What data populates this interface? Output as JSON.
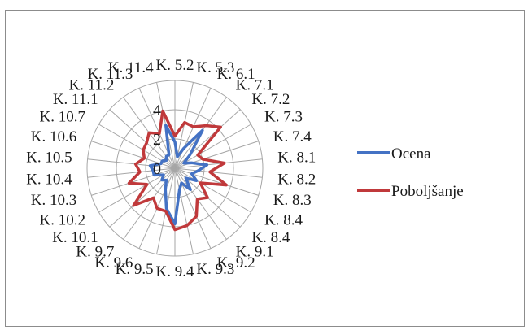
{
  "chart_data": {
    "type": "radar",
    "categories": [
      "K. 5.2",
      "K. 5.3",
      "K. 6.1",
      "K. 7.1",
      "K. 7.2",
      "K. 7.3",
      "K. 7.4",
      "K. 8.1",
      "K. 8.2",
      "K. 8.3",
      "K. 8.4",
      "K. 8.4",
      "K. 9.1",
      "K. 9.2",
      "K. 9.3",
      "K. 9.4",
      "K. 9.5",
      "K. 9.6",
      "K. 9.7",
      "K. 10.1",
      "K. 10.2",
      "K. 10.3",
      "K. 10.4",
      "K. 10.5",
      "K. 10.6",
      "K. 10.7",
      "K. 11.1",
      "K. 11.2",
      "K. 11.3",
      "K. 11.4"
    ],
    "rlim": [
      0,
      6
    ],
    "ticks": [
      0,
      2,
      4
    ],
    "grid": true,
    "legend_position": "right",
    "series": [
      {
        "name": "Ocena",
        "color": "#4472c4",
        "values": [
          1.8,
          0.8,
          1.5,
          3.2,
          1.4,
          0.7,
          1.2,
          2.2,
          1.6,
          1.2,
          1.7,
          1.0,
          1.8,
          1.1,
          1.5,
          3.8,
          2.8,
          1.6,
          1.0,
          1.2,
          0.9,
          1.5,
          1.5,
          1.7,
          1.0,
          1.0,
          0.8,
          1.0,
          1.0,
          3.0
        ]
      },
      {
        "name": "Poboljšanje",
        "color": "#c0393b",
        "values": [
          2.2,
          3.2,
          3.1,
          3.6,
          4.2,
          1.8,
          2.0,
          3.4,
          2.4,
          3.7,
          2.0,
          3.0,
          2.6,
          3.6,
          4.0,
          4.2,
          3.0,
          3.0,
          2.5,
          3.8,
          2.2,
          3.3,
          2.4,
          2.7,
          2.2,
          2.5,
          2.6,
          3.0,
          2.6,
          4.0
        ]
      }
    ]
  }
}
